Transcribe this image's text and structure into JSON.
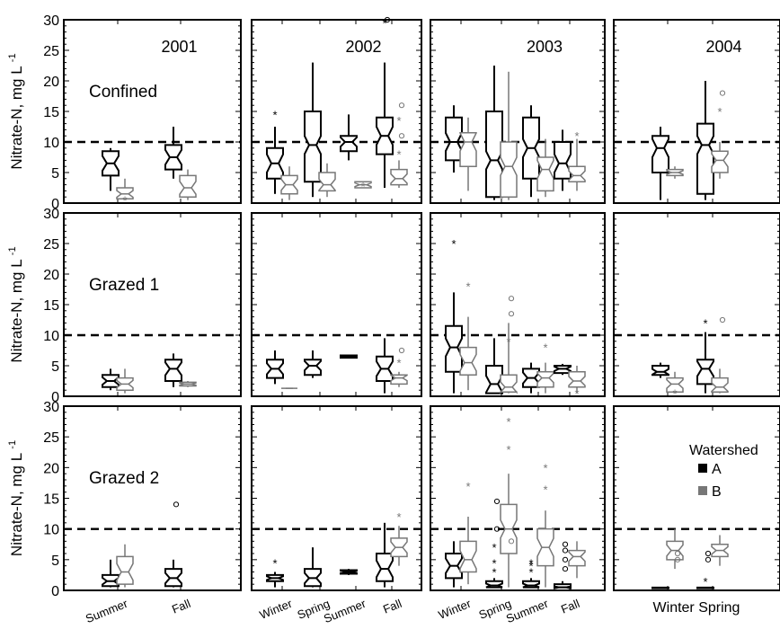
{
  "chart_data": {
    "type": "box",
    "ylabel": "Nitrate-N, mg L",
    "ylabel_superscript": "-1",
    "ylim": [
      0,
      30
    ],
    "yticks": [
      0,
      5,
      10,
      15,
      20,
      25,
      30
    ],
    "threshold": 10,
    "years": [
      "2001",
      "2002",
      "2003",
      "2004"
    ],
    "rows": [
      "Confined",
      "Grazed 1",
      "Grazed 2"
    ],
    "season_labels": {
      "2001": [
        "Summer",
        "Fall"
      ],
      "2002": [
        "Winter",
        "Spring",
        "Summer",
        "Fall"
      ],
      "2003": [
        "Winter",
        "Spring",
        "Summer",
        "Fall"
      ],
      "2004": [
        "Winter",
        "Spring"
      ]
    },
    "legend": {
      "title": "Watershed",
      "entries": [
        {
          "label": "A",
          "color": "#000000"
        },
        {
          "label": "B",
          "color": "#777777"
        }
      ]
    },
    "colors": {
      "A": "#000000",
      "B": "#777777"
    },
    "boxes": [
      {
        "row": "Confined",
        "year": "2001",
        "season": "Summer",
        "ws": "A",
        "min": 2,
        "q1": 4.5,
        "med": 6.5,
        "q3": 8.5,
        "max": 9,
        "out_star": [],
        "out_circle": []
      },
      {
        "row": "Confined",
        "year": "2001",
        "season": "Summer",
        "ws": "B",
        "min": 0.5,
        "q1": 0.7,
        "med": 1.5,
        "q3": 2.5,
        "max": 4,
        "out_star": [
          0.5
        ],
        "out_circle": []
      },
      {
        "row": "Confined",
        "year": "2001",
        "season": "Fall",
        "ws": "A",
        "min": 4,
        "q1": 5.5,
        "med": 7.5,
        "q3": 9.5,
        "max": 12.5,
        "out_star": [],
        "out_circle": []
      },
      {
        "row": "Confined",
        "year": "2001",
        "season": "Fall",
        "ws": "B",
        "min": 0.5,
        "q1": 1,
        "med": 2.5,
        "q3": 4.5,
        "max": 5.5,
        "out_star": [],
        "out_circle": []
      },
      {
        "row": "Confined",
        "year": "2002",
        "season": "Winter",
        "ws": "A",
        "min": 1.5,
        "q1": 4,
        "med": 6.5,
        "q3": 9,
        "max": 12.5,
        "out_star": [
          14.5
        ],
        "out_circle": []
      },
      {
        "row": "Confined",
        "year": "2002",
        "season": "Winter",
        "ws": "B",
        "min": 0.5,
        "q1": 1.5,
        "med": 3,
        "q3": 4.5,
        "max": 6,
        "out_star": [],
        "out_circle": []
      },
      {
        "row": "Confined",
        "year": "2002",
        "season": "Spring",
        "ws": "A",
        "min": 1,
        "q1": 3.5,
        "med": 9.5,
        "q3": 15,
        "max": 23,
        "out_star": [],
        "out_circle": []
      },
      {
        "row": "Confined",
        "year": "2002",
        "season": "Spring",
        "ws": "B",
        "min": 1,
        "q1": 2,
        "med": 3,
        "q3": 5,
        "max": 6.5,
        "out_star": [],
        "out_circle": []
      },
      {
        "row": "Confined",
        "year": "2002",
        "season": "Summer",
        "ws": "A",
        "min": 7,
        "q1": 8.5,
        "med": 10,
        "q3": 11,
        "max": 14.5,
        "out_star": [],
        "out_circle": []
      },
      {
        "row": "Confined",
        "year": "2002",
        "season": "Summer",
        "ws": "B",
        "min": 2.5,
        "q1": 2.5,
        "med": 3,
        "q3": 3.5,
        "max": 3.5,
        "out_star": [
          2.8
        ],
        "out_circle": []
      },
      {
        "row": "Confined",
        "year": "2002",
        "season": "Fall",
        "ws": "A",
        "min": 2.5,
        "q1": 8,
        "med": 11,
        "q3": 14,
        "max": 23,
        "out_star": [
          29.5
        ],
        "out_circle": [
          30
        ]
      },
      {
        "row": "Confined",
        "year": "2002",
        "season": "Fall",
        "ws": "B",
        "min": 2.5,
        "q1": 3,
        "med": 4,
        "q3": 5.5,
        "max": 7,
        "out_star": [
          13.5,
          8
        ],
        "out_circle": [
          16,
          11
        ]
      },
      {
        "row": "Confined",
        "year": "2003",
        "season": "Winter",
        "ws": "A",
        "min": 5,
        "q1": 7,
        "med": 10,
        "q3": 14,
        "max": 16,
        "out_star": [],
        "out_circle": []
      },
      {
        "row": "Confined",
        "year": "2003",
        "season": "Winter",
        "ws": "B",
        "min": 2,
        "q1": 6,
        "med": 10,
        "q3": 11.5,
        "max": 14,
        "out_star": [],
        "out_circle": []
      },
      {
        "row": "Confined",
        "year": "2003",
        "season": "Spring",
        "ws": "A",
        "min": 0.5,
        "q1": 1,
        "med": 7,
        "q3": 15,
        "max": 22.5,
        "out_star": [],
        "out_circle": []
      },
      {
        "row": "Confined",
        "year": "2003",
        "season": "Spring",
        "ws": "B",
        "min": 0.5,
        "q1": 1,
        "med": 6,
        "q3": 10,
        "max": 21.5,
        "out_star": [],
        "out_circle": []
      },
      {
        "row": "Confined",
        "year": "2003",
        "season": "Summer",
        "ws": "A",
        "min": 1,
        "q1": 4,
        "med": 9,
        "q3": 14,
        "max": 16,
        "out_star": [],
        "out_circle": []
      },
      {
        "row": "Confined",
        "year": "2003",
        "season": "Summer",
        "ws": "B",
        "min": 1,
        "q1": 2,
        "med": 5.5,
        "q3": 7.5,
        "max": 10.5,
        "out_star": [],
        "out_circle": []
      },
      {
        "row": "Confined",
        "year": "2003",
        "season": "Fall",
        "ws": "A",
        "min": 2,
        "q1": 4,
        "med": 6.5,
        "q3": 10,
        "max": 12,
        "out_star": [],
        "out_circle": []
      },
      {
        "row": "Confined",
        "year": "2003",
        "season": "Fall",
        "ws": "B",
        "min": 2,
        "q1": 3.5,
        "med": 4.5,
        "q3": 6,
        "max": 10.5,
        "out_star": [
          11
        ],
        "out_circle": []
      },
      {
        "row": "Confined",
        "year": "2004",
        "season": "Winter",
        "ws": "A",
        "min": 0.5,
        "q1": 5,
        "med": 9,
        "q3": 11,
        "max": 12.5,
        "out_star": [],
        "out_circle": []
      },
      {
        "row": "Confined",
        "year": "2004",
        "season": "Winter",
        "ws": "B",
        "min": 4,
        "q1": 4.5,
        "med": 5,
        "q3": 5.5,
        "max": 6,
        "out_star": [],
        "out_circle": []
      },
      {
        "row": "Confined",
        "year": "2004",
        "season": "Spring",
        "ws": "A",
        "min": 0.5,
        "q1": 1.5,
        "med": 9.5,
        "q3": 13,
        "max": 20,
        "out_star": [],
        "out_circle": []
      },
      {
        "row": "Confined",
        "year": "2004",
        "season": "Spring",
        "ws": "B",
        "min": 4,
        "q1": 5,
        "med": 7,
        "q3": 8.5,
        "max": 10,
        "out_star": [
          15
        ],
        "out_circle": [
          18
        ]
      },
      {
        "row": "Grazed 1",
        "year": "2001",
        "season": "Summer",
        "ws": "A",
        "min": 1,
        "q1": 1.5,
        "med": 2.5,
        "q3": 3.5,
        "max": 4.5,
        "out_star": [],
        "out_circle": []
      },
      {
        "row": "Grazed 1",
        "year": "2001",
        "season": "Summer",
        "ws": "B",
        "min": 0.5,
        "q1": 1,
        "med": 2,
        "q3": 3,
        "max": 4.5,
        "out_star": [],
        "out_circle": []
      },
      {
        "row": "Grazed 1",
        "year": "2001",
        "season": "Fall",
        "ws": "A",
        "min": 1.5,
        "q1": 2.5,
        "med": 4.5,
        "q3": 6,
        "max": 7,
        "out_star": [],
        "out_circle": []
      },
      {
        "row": "Grazed 1",
        "year": "2001",
        "season": "Fall",
        "ws": "B",
        "min": 1.5,
        "q1": 1.7,
        "med": 2,
        "q3": 2.3,
        "max": 2.5,
        "out_star": [],
        "out_circle": []
      },
      {
        "row": "Grazed 1",
        "year": "2002",
        "season": "Winter",
        "ws": "A",
        "min": 2,
        "q1": 3,
        "med": 4.5,
        "q3": 6,
        "max": 7.5,
        "out_star": [],
        "out_circle": []
      },
      {
        "row": "Grazed 1",
        "year": "2002",
        "season": "Winter",
        "ws": "B",
        "min": 1.3,
        "q1": 1.3,
        "med": 1.3,
        "q3": 1.3,
        "max": 1.3,
        "out_star": [],
        "out_circle": []
      },
      {
        "row": "Grazed 1",
        "year": "2002",
        "season": "Spring",
        "ws": "A",
        "min": 3,
        "q1": 3.5,
        "med": 5,
        "q3": 6,
        "max": 7.5,
        "out_star": [],
        "out_circle": []
      },
      {
        "row": "Grazed 1",
        "year": "2002",
        "season": "Summer",
        "ws": "A",
        "min": 6.2,
        "q1": 6.3,
        "med": 6.5,
        "q3": 6.7,
        "max": 6.8,
        "out_star": [],
        "out_circle": []
      },
      {
        "row": "Grazed 1",
        "year": "2002",
        "season": "Fall",
        "ws": "A",
        "min": 0.5,
        "q1": 2.5,
        "med": 4.5,
        "q3": 6.5,
        "max": 9.5,
        "out_star": [],
        "out_circle": []
      },
      {
        "row": "Grazed 1",
        "year": "2002",
        "season": "Fall",
        "ws": "B",
        "min": 1.5,
        "q1": 2,
        "med": 3,
        "q3": 3.5,
        "max": 4,
        "out_star": [
          5.5
        ],
        "out_circle": [
          7.5
        ]
      },
      {
        "row": "Grazed 1",
        "year": "2003",
        "season": "Winter",
        "ws": "A",
        "min": 0.5,
        "q1": 4,
        "med": 8,
        "q3": 11.5,
        "max": 17,
        "out_star": [
          25
        ],
        "out_circle": []
      },
      {
        "row": "Grazed 1",
        "year": "2003",
        "season": "Winter",
        "ws": "B",
        "min": 1,
        "q1": 3.5,
        "med": 5.5,
        "q3": 8,
        "max": 13,
        "out_star": [
          18
        ],
        "out_circle": []
      },
      {
        "row": "Grazed 1",
        "year": "2003",
        "season": "Spring",
        "ws": "A",
        "min": 0.5,
        "q1": 0.5,
        "med": 2,
        "q3": 5,
        "max": 9.5,
        "out_star": [],
        "out_circle": []
      },
      {
        "row": "Grazed 1",
        "year": "2003",
        "season": "Spring",
        "ws": "B",
        "min": 0.5,
        "q1": 0.7,
        "med": 1.5,
        "q3": 3.5,
        "max": 12,
        "out_star": [
          9
        ],
        "out_circle": [
          13.5,
          16
        ]
      },
      {
        "row": "Grazed 1",
        "year": "2003",
        "season": "Summer",
        "ws": "A",
        "min": 0.5,
        "q1": 1.5,
        "med": 3,
        "q3": 4.5,
        "max": 5.5,
        "out_star": [],
        "out_circle": []
      },
      {
        "row": "Grazed 1",
        "year": "2003",
        "season": "Summer",
        "ws": "B",
        "min": 0.5,
        "q1": 1.5,
        "med": 3,
        "q3": 4,
        "max": 5.5,
        "out_star": [
          8
        ],
        "out_circle": []
      },
      {
        "row": "Grazed 1",
        "year": "2003",
        "season": "Fall",
        "ws": "A",
        "min": 3.5,
        "q1": 3.8,
        "med": 4.5,
        "q3": 5,
        "max": 5.3,
        "out_star": [],
        "out_circle": []
      },
      {
        "row": "Grazed 1",
        "year": "2003",
        "season": "Fall",
        "ws": "B",
        "min": 0.5,
        "q1": 1.5,
        "med": 2.5,
        "q3": 4,
        "max": 5,
        "out_star": [
          0.5
        ],
        "out_circle": []
      },
      {
        "row": "Grazed 1",
        "year": "2004",
        "season": "Winter",
        "ws": "A",
        "min": 3,
        "q1": 3.5,
        "med": 4,
        "q3": 5,
        "max": 5.5,
        "out_star": [],
        "out_circle": []
      },
      {
        "row": "Grazed 1",
        "year": "2004",
        "season": "Winter",
        "ws": "B",
        "min": 0.5,
        "q1": 0.7,
        "med": 2,
        "q3": 3,
        "max": 4,
        "out_star": [
          0.5
        ],
        "out_circle": []
      },
      {
        "row": "Grazed 1",
        "year": "2004",
        "season": "Spring",
        "ws": "A",
        "min": 0.5,
        "q1": 2,
        "med": 4.5,
        "q3": 6,
        "max": 10.5,
        "out_star": [
          12
        ],
        "out_circle": []
      },
      {
        "row": "Grazed 1",
        "year": "2004",
        "season": "Spring",
        "ws": "B",
        "min": 0.5,
        "q1": 0.7,
        "med": 1.5,
        "q3": 3,
        "max": 4.5,
        "out_star": [],
        "out_circle": [
          12.5
        ]
      },
      {
        "row": "Grazed 2",
        "year": "2001",
        "season": "Summer",
        "ws": "A",
        "min": 0.5,
        "q1": 0.7,
        "med": 1.5,
        "q3": 2.5,
        "max": 5,
        "out_star": [],
        "out_circle": []
      },
      {
        "row": "Grazed 2",
        "year": "2001",
        "season": "Summer",
        "ws": "B",
        "min": 0.5,
        "q1": 1,
        "med": 3,
        "q3": 5.5,
        "max": 7.5,
        "out_star": [],
        "out_circle": []
      },
      {
        "row": "Grazed 2",
        "year": "2001",
        "season": "Fall",
        "ws": "A",
        "min": 0.5,
        "q1": 0.7,
        "med": 2,
        "q3": 3.5,
        "max": 5,
        "out_star": [],
        "out_circle": [
          14
        ]
      },
      {
        "row": "Grazed 2",
        "year": "2002",
        "season": "Winter",
        "ws": "A",
        "min": 0.5,
        "q1": 1.5,
        "med": 2,
        "q3": 2.5,
        "max": 3,
        "out_star": [
          4.5
        ],
        "out_circle": []
      },
      {
        "row": "Grazed 2",
        "year": "2002",
        "season": "Spring",
        "ws": "A",
        "min": 0.5,
        "q1": 0.7,
        "med": 2,
        "q3": 3.5,
        "max": 7,
        "out_star": [],
        "out_circle": []
      },
      {
        "row": "Grazed 2",
        "year": "2002",
        "season": "Summer",
        "ws": "A",
        "min": 2.5,
        "q1": 2.7,
        "med": 3,
        "q3": 3.3,
        "max": 3.5,
        "out_star": [],
        "out_circle": []
      },
      {
        "row": "Grazed 2",
        "year": "2002",
        "season": "Fall",
        "ws": "A",
        "min": 0.5,
        "q1": 1.5,
        "med": 3.5,
        "q3": 6,
        "max": 11,
        "out_star": [],
        "out_circle": []
      },
      {
        "row": "Grazed 2",
        "year": "2002",
        "season": "Fall",
        "ws": "B",
        "min": 4,
        "q1": 5.5,
        "med": 7,
        "q3": 8.5,
        "max": 10.5,
        "out_star": [
          12
        ],
        "out_circle": []
      },
      {
        "row": "Grazed 2",
        "year": "2003",
        "season": "Winter",
        "ws": "A",
        "min": 0.5,
        "q1": 2,
        "med": 4,
        "q3": 6,
        "max": 8,
        "out_star": [],
        "out_circle": []
      },
      {
        "row": "Grazed 2",
        "year": "2003",
        "season": "Winter",
        "ws": "B",
        "min": 1,
        "q1": 3,
        "med": 5,
        "q3": 8,
        "max": 12,
        "out_star": [
          17
        ],
        "out_circle": []
      },
      {
        "row": "Grazed 2",
        "year": "2003",
        "season": "Spring",
        "ws": "A",
        "min": 0.5,
        "q1": 0.5,
        "med": 0.8,
        "q3": 1.5,
        "max": 2,
        "out_star": [
          3,
          4.5,
          7
        ],
        "out_circle": [
          10,
          14.5
        ]
      },
      {
        "row": "Grazed 2",
        "year": "2003",
        "season": "Spring",
        "ws": "B",
        "min": 0.5,
        "q1": 6,
        "med": 10,
        "q3": 14,
        "max": 19,
        "out_star": [
          23,
          27.5
        ],
        "out_circle": [
          8
        ]
      },
      {
        "row": "Grazed 2",
        "year": "2003",
        "season": "Summer",
        "ws": "A",
        "min": 0.5,
        "q1": 0.5,
        "med": 0.8,
        "q3": 1.5,
        "max": 2,
        "out_star": [
          3,
          4,
          4.5
        ],
        "out_circle": []
      },
      {
        "row": "Grazed 2",
        "year": "2003",
        "season": "Summer",
        "ws": "B",
        "min": 0.5,
        "q1": 4,
        "med": 7,
        "q3": 10,
        "max": 13,
        "out_star": [
          16.5,
          20
        ],
        "out_circle": []
      },
      {
        "row": "Grazed 2",
        "year": "2003",
        "season": "Fall",
        "ws": "A",
        "min": 0.5,
        "q1": 0.5,
        "med": 0.5,
        "q3": 1,
        "max": 1.5,
        "out_star": [],
        "out_circle": [
          3.5,
          5,
          6.5,
          7.5
        ]
      },
      {
        "row": "Grazed 2",
        "year": "2003",
        "season": "Fall",
        "ws": "B",
        "min": 2,
        "q1": 4,
        "med": 5.5,
        "q3": 6.5,
        "max": 8,
        "out_star": [],
        "out_circle": []
      },
      {
        "row": "Grazed 2",
        "year": "2004",
        "season": "Winter",
        "ws": "A",
        "min": 0.3,
        "q1": 0.35,
        "med": 0.4,
        "q3": 0.45,
        "max": 0.5,
        "out_star": [],
        "out_circle": []
      },
      {
        "row": "Grazed 2",
        "year": "2004",
        "season": "Winter",
        "ws": "B",
        "min": 3.5,
        "q1": 5,
        "med": 6.5,
        "q3": 8,
        "max": 10,
        "out_star": [],
        "out_circle": [
          5,
          6
        ]
      },
      {
        "row": "Grazed 2",
        "year": "2004",
        "season": "Spring",
        "ws": "A",
        "min": 0.3,
        "q1": 0.35,
        "med": 0.4,
        "q3": 0.45,
        "max": 0.5,
        "out_star": [
          1.5
        ],
        "out_circle": [
          5,
          6
        ]
      },
      {
        "row": "Grazed 2",
        "year": "2004",
        "season": "Spring",
        "ws": "B",
        "min": 4,
        "q1": 5.5,
        "med": 6.5,
        "q3": 7.5,
        "max": 9,
        "out_star": [],
        "out_circle": []
      }
    ]
  }
}
